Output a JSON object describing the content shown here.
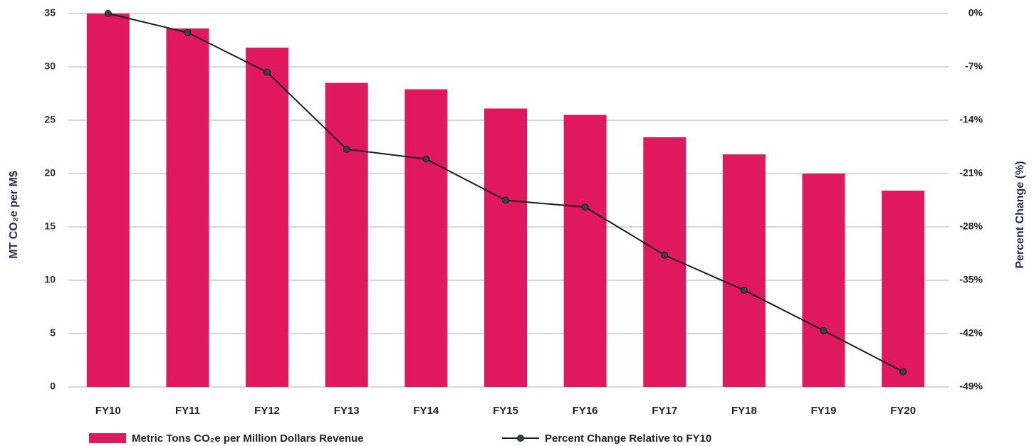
{
  "chart_data": {
    "type": "bar",
    "y_label": "MT CO₂e per M$",
    "y2_label": "Percent Change (%)",
    "categories": [
      "FY10",
      "FY11",
      "FY12",
      "FY13",
      "FY14",
      "FY15",
      "FY16",
      "FY17",
      "FY18",
      "FY19",
      "FY20"
    ],
    "series": [
      {
        "name": "Metric Tons CO₂e per Million Dollars Revenue",
        "type": "bar",
        "color": "#e0195e",
        "axis": "y",
        "values": [
          35,
          33.6,
          31.8,
          28.5,
          27.9,
          26.1,
          25.5,
          23.4,
          21.8,
          20.0,
          18.4
        ]
      },
      {
        "name": "Percent Change Relative to FY10",
        "type": "line",
        "color": "#1c1c1c",
        "marker_color": "#3a4046",
        "axis": "y2",
        "values": [
          0,
          -2.5,
          -7.7,
          -17.8,
          -19.1,
          -24.5,
          -25.4,
          -31.7,
          -36.3,
          -41.6,
          -47.0
        ]
      }
    ],
    "ylim": [
      0,
      35
    ],
    "yticks": [
      0,
      5,
      10,
      15,
      20,
      25,
      30,
      35
    ],
    "y2lim": [
      -49,
      0
    ],
    "y2ticks": [
      {
        "value": 0,
        "label": "0%"
      },
      {
        "value": -7,
        "label": "-7%"
      },
      {
        "value": -14,
        "label": "-14%"
      },
      {
        "value": -21,
        "label": "-21%"
      },
      {
        "value": -28,
        "label": "-28%"
      },
      {
        "value": -35,
        "label": "-35%"
      },
      {
        "value": -42,
        "label": "-42%"
      },
      {
        "value": -49,
        "label": "-49%"
      }
    ],
    "grid": true,
    "legend": "bottom"
  }
}
